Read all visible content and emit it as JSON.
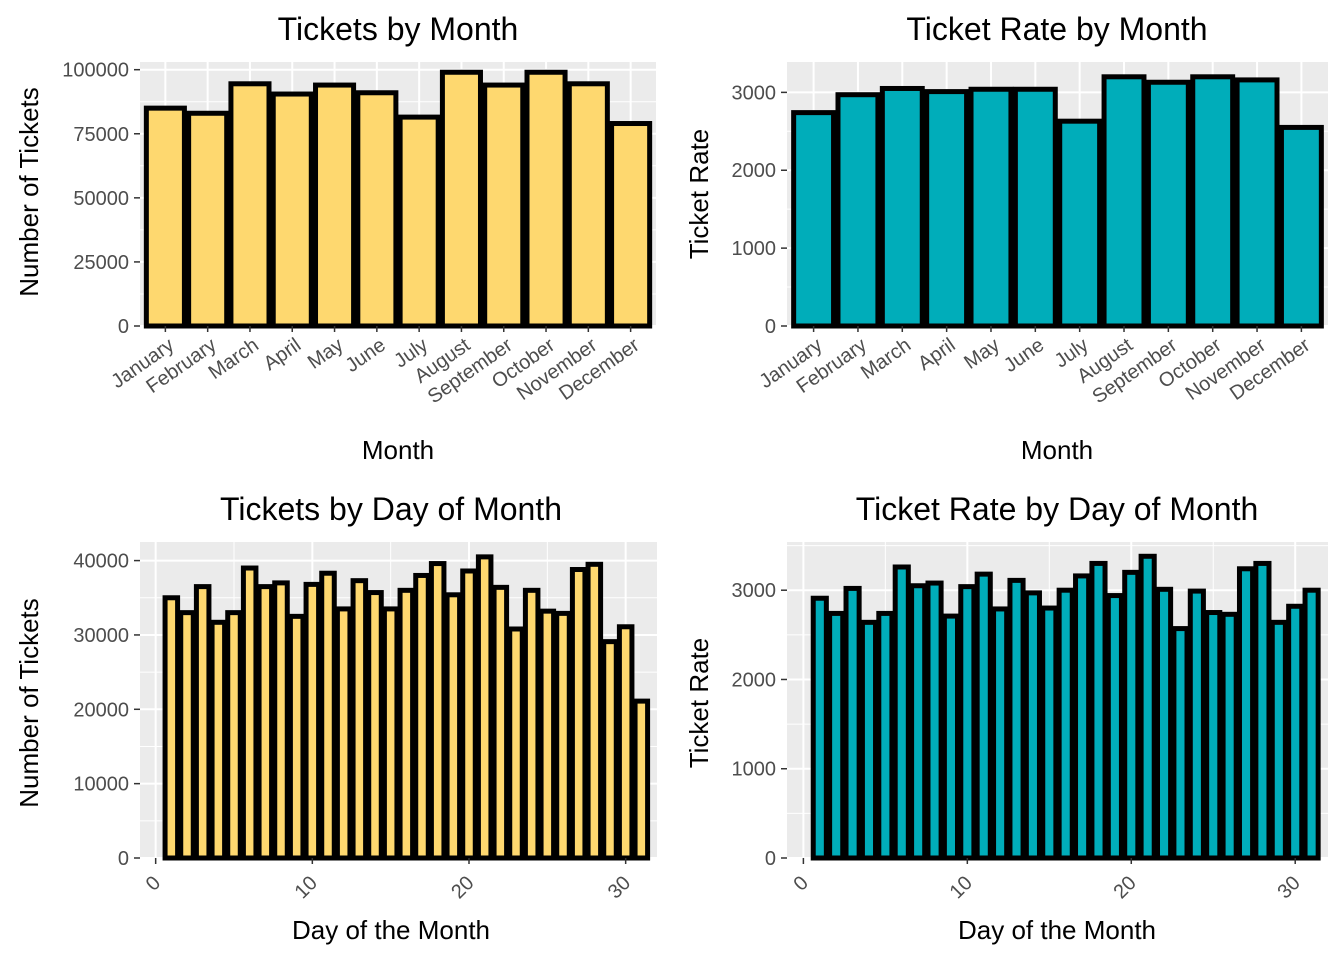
{
  "colors": {
    "panel_bg": "#ebebeb",
    "grid": "#ffffff",
    "bar_outline": "#000000",
    "tick_text": "#4d4d4d"
  },
  "chart_data": [
    {
      "type": "bar",
      "title": "Tickets by Month",
      "xlabel": "Month",
      "ylabel": "Number of Tickets",
      "fill": "#fed86f",
      "categories": [
        "January",
        "February",
        "March",
        "April",
        "May",
        "June",
        "July",
        "August",
        "September",
        "October",
        "November",
        "December"
      ],
      "values": [
        85000,
        83000,
        94500,
        90500,
        94000,
        91000,
        81500,
        99000,
        94000,
        99000,
        94500,
        79000
      ],
      "ylim": [
        0,
        103000
      ],
      "yticks": [
        0,
        25000,
        50000,
        75000,
        100000
      ],
      "ytick_labels": [
        "0",
        "25000",
        "50000",
        "75000",
        "100000"
      ],
      "grid": true
    },
    {
      "type": "bar",
      "title": "Ticket Rate by Month",
      "xlabel": "Month",
      "ylabel": "Ticket Rate",
      "fill": "#00adba",
      "categories": [
        "January",
        "February",
        "March",
        "April",
        "May",
        "June",
        "July",
        "August",
        "September",
        "October",
        "November",
        "December"
      ],
      "values": [
        2740,
        2970,
        3050,
        3010,
        3040,
        3040,
        2630,
        3200,
        3130,
        3200,
        3160,
        2550
      ],
      "ylim": [
        0,
        3390
      ],
      "yticks": [
        0,
        1000,
        2000,
        3000
      ],
      "ytick_labels": [
        "0",
        "1000",
        "2000",
        "3000"
      ],
      "grid": true
    },
    {
      "type": "bar",
      "title": "Tickets by Day of Month",
      "xlabel": "Day of the Month",
      "ylabel": "Number of Tickets",
      "fill": "#fed86f",
      "x": [
        1,
        2,
        3,
        4,
        5,
        6,
        7,
        8,
        9,
        10,
        11,
        12,
        13,
        14,
        15,
        16,
        17,
        18,
        19,
        20,
        21,
        22,
        23,
        24,
        25,
        26,
        27,
        28,
        29,
        30,
        31
      ],
      "values": [
        35000,
        33000,
        36500,
        31700,
        33000,
        39000,
        36500,
        37000,
        32500,
        36800,
        38300,
        33500,
        37300,
        35700,
        33500,
        36000,
        38000,
        39600,
        35400,
        38600,
        40500,
        36400,
        30800,
        36000,
        33200,
        32900,
        38800,
        39500,
        29100,
        31100,
        21100
      ],
      "xlim": [
        -1,
        32
      ],
      "xticks": [
        0,
        10,
        20,
        30
      ],
      "xtick_labels": [
        "0",
        "10",
        "20",
        "30"
      ],
      "ylim": [
        0,
        42500
      ],
      "yticks": [
        0,
        10000,
        20000,
        30000,
        40000
      ],
      "ytick_labels": [
        "0",
        "10000",
        "20000",
        "30000",
        "40000"
      ],
      "grid": true
    },
    {
      "type": "bar",
      "title": "Ticket Rate by Day of Month",
      "xlabel": "Day of the Month",
      "ylabel": "Ticket Rate",
      "fill": "#00adba",
      "x": [
        1,
        2,
        3,
        4,
        5,
        6,
        7,
        8,
        9,
        10,
        11,
        12,
        13,
        14,
        15,
        16,
        17,
        18,
        19,
        20,
        21,
        22,
        23,
        24,
        25,
        26,
        27,
        28,
        29,
        30,
        31
      ],
      "values": [
        2910,
        2740,
        3020,
        2640,
        2740,
        3260,
        3050,
        3080,
        2710,
        3040,
        3180,
        2790,
        3110,
        2970,
        2800,
        3000,
        3160,
        3300,
        2940,
        3200,
        3380,
        3010,
        2570,
        2990,
        2750,
        2730,
        3240,
        3300,
        2640,
        2820,
        3000
      ],
      "xlim": [
        -1,
        32
      ],
      "xticks": [
        0,
        10,
        20,
        30
      ],
      "xtick_labels": [
        "0",
        "10",
        "20",
        "30"
      ],
      "ylim": [
        0,
        3540
      ],
      "yticks": [
        0,
        1000,
        2000,
        3000
      ],
      "ytick_labels": [
        "0",
        "1000",
        "2000",
        "3000"
      ],
      "grid": true
    }
  ]
}
